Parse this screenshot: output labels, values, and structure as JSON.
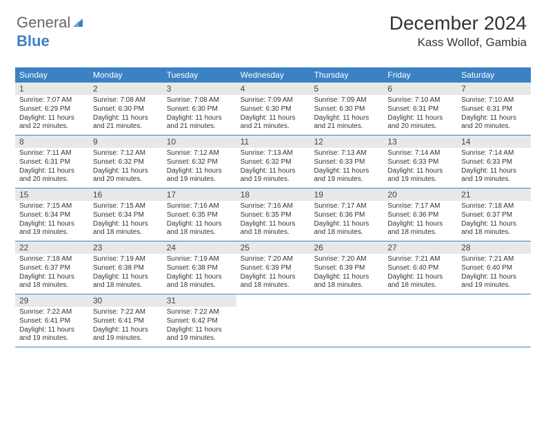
{
  "logo": {
    "text1": "General",
    "text2": "Blue"
  },
  "title": "December 2024",
  "location": "Kass Wollof, Gambia",
  "colors": {
    "headerBar": "#3b82c4",
    "dayNumBg": "#e8e8e8",
    "weekBorder": "#3b82c4",
    "text": "#333333",
    "background": "#ffffff"
  },
  "fonts": {
    "title_pt": 28,
    "location_pt": 17,
    "dow_pt": 12,
    "daynum_pt": 12,
    "body_pt": 10
  },
  "dow": [
    "Sunday",
    "Monday",
    "Tuesday",
    "Wednesday",
    "Thursday",
    "Friday",
    "Saturday"
  ],
  "days": [
    {
      "n": 1,
      "sr": "7:07 AM",
      "ss": "6:29 PM",
      "dl": "11 hours and 22 minutes."
    },
    {
      "n": 2,
      "sr": "7:08 AM",
      "ss": "6:30 PM",
      "dl": "11 hours and 21 minutes."
    },
    {
      "n": 3,
      "sr": "7:08 AM",
      "ss": "6:30 PM",
      "dl": "11 hours and 21 minutes."
    },
    {
      "n": 4,
      "sr": "7:09 AM",
      "ss": "6:30 PM",
      "dl": "11 hours and 21 minutes."
    },
    {
      "n": 5,
      "sr": "7:09 AM",
      "ss": "6:30 PM",
      "dl": "11 hours and 21 minutes."
    },
    {
      "n": 6,
      "sr": "7:10 AM",
      "ss": "6:31 PM",
      "dl": "11 hours and 20 minutes."
    },
    {
      "n": 7,
      "sr": "7:10 AM",
      "ss": "6:31 PM",
      "dl": "11 hours and 20 minutes."
    },
    {
      "n": 8,
      "sr": "7:11 AM",
      "ss": "6:31 PM",
      "dl": "11 hours and 20 minutes."
    },
    {
      "n": 9,
      "sr": "7:12 AM",
      "ss": "6:32 PM",
      "dl": "11 hours and 20 minutes."
    },
    {
      "n": 10,
      "sr": "7:12 AM",
      "ss": "6:32 PM",
      "dl": "11 hours and 19 minutes."
    },
    {
      "n": 11,
      "sr": "7:13 AM",
      "ss": "6:32 PM",
      "dl": "11 hours and 19 minutes."
    },
    {
      "n": 12,
      "sr": "7:13 AM",
      "ss": "6:33 PM",
      "dl": "11 hours and 19 minutes."
    },
    {
      "n": 13,
      "sr": "7:14 AM",
      "ss": "6:33 PM",
      "dl": "11 hours and 19 minutes."
    },
    {
      "n": 14,
      "sr": "7:14 AM",
      "ss": "6:33 PM",
      "dl": "11 hours and 19 minutes."
    },
    {
      "n": 15,
      "sr": "7:15 AM",
      "ss": "6:34 PM",
      "dl": "11 hours and 19 minutes."
    },
    {
      "n": 16,
      "sr": "7:15 AM",
      "ss": "6:34 PM",
      "dl": "11 hours and 18 minutes."
    },
    {
      "n": 17,
      "sr": "7:16 AM",
      "ss": "6:35 PM",
      "dl": "11 hours and 18 minutes."
    },
    {
      "n": 18,
      "sr": "7:16 AM",
      "ss": "6:35 PM",
      "dl": "11 hours and 18 minutes."
    },
    {
      "n": 19,
      "sr": "7:17 AM",
      "ss": "6:36 PM",
      "dl": "11 hours and 18 minutes."
    },
    {
      "n": 20,
      "sr": "7:17 AM",
      "ss": "6:36 PM",
      "dl": "11 hours and 18 minutes."
    },
    {
      "n": 21,
      "sr": "7:18 AM",
      "ss": "6:37 PM",
      "dl": "11 hours and 18 minutes."
    },
    {
      "n": 22,
      "sr": "7:18 AM",
      "ss": "6:37 PM",
      "dl": "11 hours and 18 minutes."
    },
    {
      "n": 23,
      "sr": "7:19 AM",
      "ss": "6:38 PM",
      "dl": "11 hours and 18 minutes."
    },
    {
      "n": 24,
      "sr": "7:19 AM",
      "ss": "6:38 PM",
      "dl": "11 hours and 18 minutes."
    },
    {
      "n": 25,
      "sr": "7:20 AM",
      "ss": "6:39 PM",
      "dl": "11 hours and 18 minutes."
    },
    {
      "n": 26,
      "sr": "7:20 AM",
      "ss": "6:39 PM",
      "dl": "11 hours and 18 minutes."
    },
    {
      "n": 27,
      "sr": "7:21 AM",
      "ss": "6:40 PM",
      "dl": "11 hours and 18 minutes."
    },
    {
      "n": 28,
      "sr": "7:21 AM",
      "ss": "6:40 PM",
      "dl": "11 hours and 19 minutes."
    },
    {
      "n": 29,
      "sr": "7:22 AM",
      "ss": "6:41 PM",
      "dl": "11 hours and 19 minutes."
    },
    {
      "n": 30,
      "sr": "7:22 AM",
      "ss": "6:41 PM",
      "dl": "11 hours and 19 minutes."
    },
    {
      "n": 31,
      "sr": "7:22 AM",
      "ss": "6:42 PM",
      "dl": "11 hours and 19 minutes."
    }
  ],
  "labels": {
    "sunrise": "Sunrise:",
    "sunset": "Sunset:",
    "daylight": "Daylight:"
  }
}
